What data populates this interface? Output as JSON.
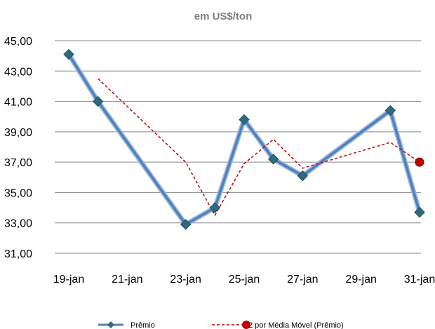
{
  "chart_data": {
    "type": "line",
    "title": "",
    "subtitle": "em US$/ton",
    "xlabel": "",
    "ylabel": "",
    "ylim": [
      31,
      45
    ],
    "y_ticks": [
      "45,00",
      "43,00",
      "41,00",
      "39,00",
      "37,00",
      "35,00",
      "33,00",
      "31,00"
    ],
    "y_tick_values": [
      45,
      43,
      41,
      39,
      37,
      35,
      33,
      31
    ],
    "x_ticks": [
      "19-jan",
      "21-jan",
      "23-jan",
      "25-jan",
      "27-jan",
      "29-jan",
      "31-jan"
    ],
    "x_tick_days": [
      19,
      21,
      23,
      25,
      27,
      29,
      31
    ],
    "grid": "horizontal",
    "legend_position": "bottom",
    "series": [
      {
        "name": "Prêmio",
        "color": "#4f81bd",
        "marker": "diamond",
        "points": [
          {
            "day": 19,
            "y": 44.1
          },
          {
            "day": 20,
            "y": 41.0
          },
          {
            "day": 23,
            "y": 32.9
          },
          {
            "day": 24,
            "y": 34.0
          },
          {
            "day": 25,
            "y": 39.8
          },
          {
            "day": 26,
            "y": 37.2
          },
          {
            "day": 27,
            "y": 36.1
          },
          {
            "day": 30,
            "y": 40.4
          },
          {
            "day": 31,
            "y": 33.7
          }
        ]
      },
      {
        "name": "2 por Média Móvel (Prêmio)",
        "color": "#c00000",
        "style": "dashed",
        "points": [
          {
            "day": 20,
            "y": 42.5
          },
          {
            "day": 23,
            "y": 37.0
          },
          {
            "day": 24,
            "y": 33.5
          },
          {
            "day": 25,
            "y": 36.9
          },
          {
            "day": 26,
            "y": 38.5
          },
          {
            "day": 27,
            "y": 36.6
          },
          {
            "day": 30,
            "y": 38.3
          },
          {
            "day": 31,
            "y": 37.0
          }
        ]
      }
    ]
  }
}
